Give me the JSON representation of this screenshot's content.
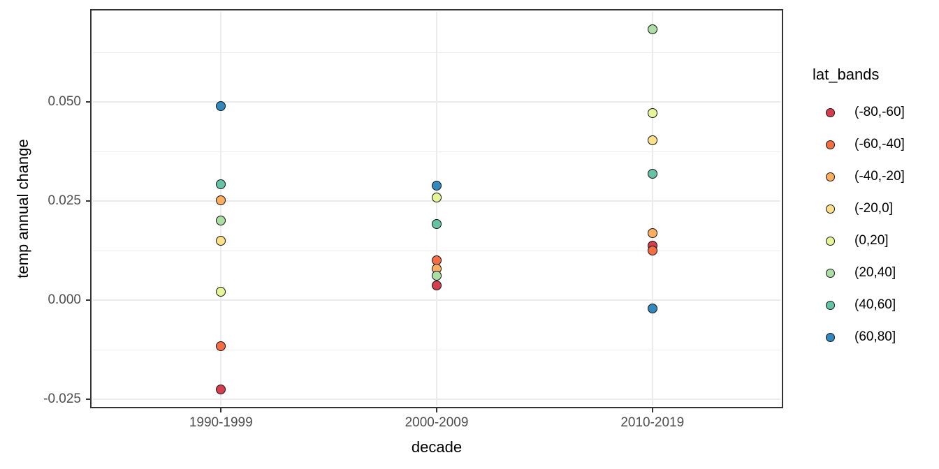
{
  "chart_data": {
    "type": "scatter",
    "title": "",
    "xlabel": "decade",
    "ylabel": "temp annual change",
    "categories": [
      "1990-1999",
      "2000-2009",
      "2010-2019"
    ],
    "y_ticks": [
      {
        "value": -0.025,
        "label": "-0.025"
      },
      {
        "value": 0.0,
        "label": "0.000"
      },
      {
        "value": 0.025,
        "label": "0.025"
      },
      {
        "value": 0.05,
        "label": "0.050"
      }
    ],
    "y_minor_gridlines": [
      -0.0125,
      0.0125,
      0.0375,
      0.0625
    ],
    "ylim": [
      -0.0269,
      0.0731
    ],
    "grid": "major-and-minor",
    "panel_background": "#ffffff",
    "legend": {
      "title": "lat_bands",
      "position": "right"
    },
    "series": [
      {
        "name": "(-80,-60]",
        "color": "#d53e4f",
        "values": [
          -0.0225,
          0.0037,
          0.0137
        ]
      },
      {
        "name": "(-60,-40]",
        "color": "#f46d43",
        "values": [
          -0.0115,
          0.01,
          0.0125
        ]
      },
      {
        "name": "(-40,-20]",
        "color": "#fdae61",
        "values": [
          0.0252,
          0.0079,
          0.0169
        ]
      },
      {
        "name": "(-20,0]",
        "color": "#fee08b",
        "values": [
          0.015,
          null,
          0.0403
        ]
      },
      {
        "name": "(0,20]",
        "color": "#e6f598",
        "values": [
          0.0021,
          0.0259,
          0.0472
        ]
      },
      {
        "name": "(20,40]",
        "color": "#abdda4",
        "values": [
          0.0201,
          0.0062,
          0.0683
        ]
      },
      {
        "name": "(40,60]",
        "color": "#66c2a5",
        "values": [
          0.0292,
          0.0192,
          0.0319
        ]
      },
      {
        "name": "(60,80]",
        "color": "#3288bd",
        "values": [
          0.0489,
          0.0289,
          -0.0021
        ]
      }
    ]
  }
}
